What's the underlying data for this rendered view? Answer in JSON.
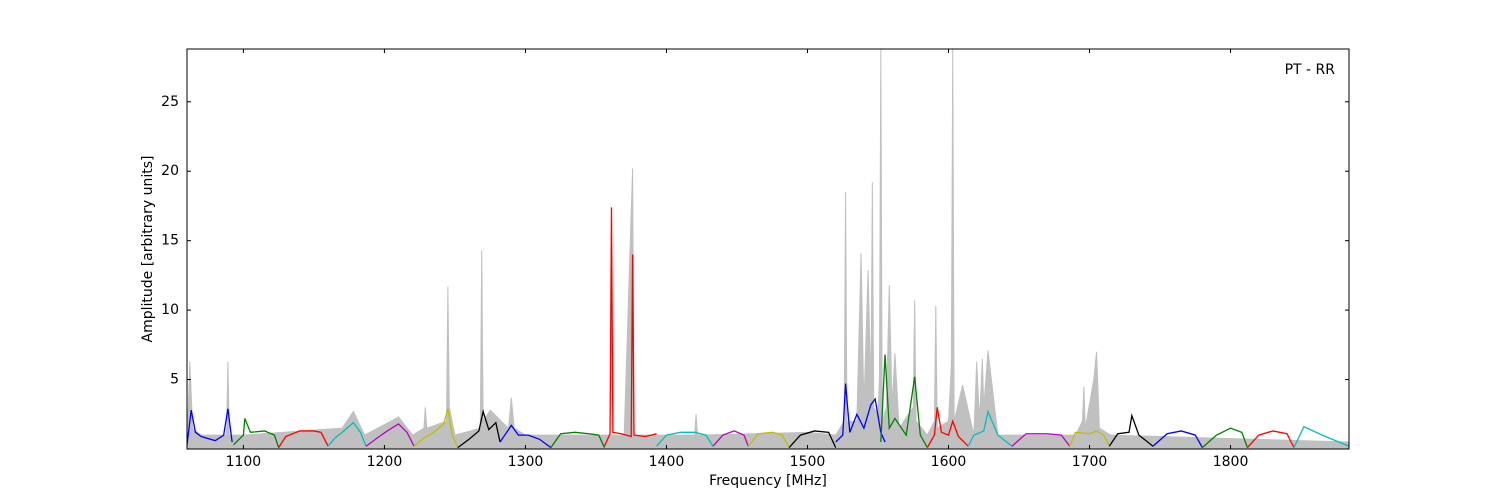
{
  "chart_data": {
    "type": "line",
    "xlabel": "Frequency [MHz]",
    "ylabel": "Amplitude [arbitrary units]",
    "annotation": "PT - RR",
    "xlim": [
      1060,
      1884
    ],
    "ylim": [
      0,
      28.8
    ],
    "xticks": [
      1100,
      1200,
      1300,
      1400,
      1500,
      1600,
      1700,
      1800
    ],
    "yticks": [
      5,
      10,
      15,
      20,
      25
    ],
    "series": [
      {
        "color": "#c0c0c0",
        "fill": true,
        "x": [
          1060,
          1062,
          1064,
          1070,
          1088,
          1089,
          1090,
          1100,
          1170,
          1178,
          1186,
          1210,
          1220,
          1228,
          1229,
          1230,
          1244,
          1245,
          1246,
          1250,
          1268,
          1269,
          1270,
          1275,
          1288,
          1290,
          1292,
          1300,
          1370,
          1376,
          1377,
          1380,
          1420,
          1421,
          1422,
          1500,
          1520,
          1526,
          1527,
          1528,
          1535,
          1538,
          1540,
          1543,
          1545,
          1546,
          1547,
          1550,
          1551,
          1552,
          1553,
          1556,
          1558,
          1560,
          1562,
          1565,
          1575,
          1576,
          1577,
          1585,
          1590,
          1591,
          1592,
          1600,
          1602,
          1603,
          1604,
          1610,
          1618,
          1620,
          1622,
          1624,
          1625,
          1628,
          1635,
          1690,
          1695,
          1696,
          1697,
          1703,
          1705,
          1707,
          1715,
          1884
        ],
        "values": [
          0.3,
          6.3,
          1.5,
          1.0,
          1.0,
          6.3,
          1.0,
          1.0,
          1.5,
          2.7,
          1.0,
          2.3,
          1.0,
          1.5,
          3.0,
          1.5,
          2.0,
          11.7,
          3.0,
          1.0,
          1.5,
          14.3,
          2.0,
          2.8,
          1.5,
          3.7,
          1.5,
          1.0,
          1.0,
          20.2,
          1.0,
          1.0,
          1.0,
          2.5,
          1.0,
          1.2,
          1.0,
          2.0,
          18.5,
          2.0,
          2.0,
          14.1,
          3.0,
          12.9,
          4.0,
          19.2,
          3.0,
          2.5,
          5.0,
          28.8,
          2.0,
          3.0,
          11.8,
          3.0,
          6.9,
          1.5,
          3.0,
          10.7,
          2.0,
          1.0,
          2.0,
          10.3,
          1.5,
          2.0,
          6.0,
          28.8,
          2.0,
          4.6,
          1.0,
          6.3,
          2.0,
          6.5,
          3.0,
          7.1,
          1.0,
          1.0,
          2.0,
          4.5,
          1.5,
          5.0,
          7.0,
          1.5,
          1.0,
          0.5
        ]
      },
      {
        "color": "#0000ff",
        "x": [
          1060,
          1063,
          1066,
          1070,
          1080,
          1086,
          1089,
          1092
        ],
        "values": [
          0.3,
          2.8,
          1.2,
          0.9,
          0.6,
          1.0,
          2.9,
          0.5
        ]
      },
      {
        "color": "#008000",
        "x": [
          1093,
          1100,
          1101,
          1105,
          1115,
          1122,
          1125
        ],
        "values": [
          0.3,
          1.0,
          2.2,
          1.2,
          1.3,
          1.0,
          0.1
        ]
      },
      {
        "color": "#ff0000",
        "x": [
          1125,
          1130,
          1140,
          1150,
          1155,
          1160
        ],
        "values": [
          0.1,
          0.9,
          1.3,
          1.3,
          1.2,
          0.2
        ]
      },
      {
        "color": "#00bfbf",
        "x": [
          1160,
          1165,
          1170,
          1178,
          1183,
          1187
        ],
        "values": [
          0.2,
          0.8,
          1.2,
          1.9,
          1.2,
          0.2
        ]
      },
      {
        "color": "#bf00bf",
        "x": [
          1187,
          1195,
          1202,
          1210,
          1216,
          1221
        ],
        "values": [
          0.2,
          0.8,
          1.3,
          1.8,
          1.2,
          0.2
        ]
      },
      {
        "color": "#bfbf00",
        "x": [
          1221,
          1228,
          1235,
          1242,
          1245,
          1248,
          1252
        ],
        "values": [
          0.2,
          0.8,
          1.2,
          1.8,
          2.9,
          1.0,
          0.1
        ]
      },
      {
        "color": "#000000",
        "x": [
          1252,
          1260,
          1267,
          1270,
          1274,
          1279,
          1282
        ],
        "values": [
          0.1,
          0.7,
          1.3,
          2.7,
          1.4,
          1.9,
          0.5
        ]
      },
      {
        "color": "#0000ff",
        "x": [
          1282,
          1290,
          1295,
          1302,
          1310,
          1318
        ],
        "values": [
          0.5,
          1.7,
          1.0,
          1.0,
          0.7,
          0.1
        ]
      },
      {
        "color": "#008000",
        "x": [
          1318,
          1325,
          1335,
          1345,
          1352,
          1356
        ],
        "values": [
          0.1,
          1.1,
          1.2,
          1.1,
          1.0,
          0.1
        ]
      },
      {
        "color": "#ff0000",
        "x": [
          1356,
          1360,
          1361,
          1362,
          1368,
          1375,
          1376,
          1377,
          1385,
          1393
        ],
        "values": [
          0.2,
          1.1,
          17.4,
          1.2,
          1.1,
          0.9,
          14.0,
          1.0,
          0.9,
          1.1
        ]
      },
      {
        "color": "#00bfbf",
        "x": [
          1393,
          1400,
          1410,
          1420,
          1428,
          1433
        ],
        "values": [
          0.2,
          1.0,
          1.2,
          1.2,
          1.0,
          0.2
        ]
      },
      {
        "color": "#bf00bf",
        "x": [
          1433,
          1440,
          1448,
          1455,
          1458
        ],
        "values": [
          0.2,
          1.0,
          1.3,
          1.0,
          0.2
        ]
      },
      {
        "color": "#bfbf00",
        "x": [
          1458,
          1465,
          1475,
          1482,
          1487
        ],
        "values": [
          0.2,
          1.1,
          1.2,
          1.0,
          0.1
        ]
      },
      {
        "color": "#000000",
        "x": [
          1487,
          1495,
          1505,
          1515,
          1520
        ],
        "values": [
          0.1,
          1.0,
          1.3,
          1.2,
          0.1
        ]
      },
      {
        "color": "#0000ff",
        "x": [
          1520,
          1525,
          1527,
          1530,
          1535,
          1540,
          1545,
          1548,
          1552,
          1555
        ],
        "values": [
          0.5,
          1.0,
          4.7,
          1.2,
          2.5,
          1.5,
          3.2,
          3.6,
          1.2,
          0.5
        ]
      },
      {
        "color": "#008000",
        "x": [
          1552,
          1555,
          1558,
          1562,
          1570,
          1576,
          1580,
          1585
        ],
        "values": [
          0.5,
          6.8,
          1.5,
          2.2,
          1.0,
          5.2,
          1.0,
          0.1
        ]
      },
      {
        "color": "#ff0000",
        "x": [
          1585,
          1590,
          1592,
          1595,
          1600,
          1603,
          1607,
          1614
        ],
        "values": [
          0.1,
          1.0,
          3.0,
          1.2,
          1.0,
          2.0,
          0.9,
          0.2
        ]
      },
      {
        "color": "#00bfbf",
        "x": [
          1614,
          1618,
          1625,
          1628,
          1635,
          1645
        ],
        "values": [
          0.2,
          1.0,
          1.3,
          2.7,
          1.0,
          0.2
        ]
      },
      {
        "color": "#bf00bf",
        "x": [
          1645,
          1655,
          1670,
          1680,
          1686
        ],
        "values": [
          0.2,
          1.1,
          1.1,
          1.0,
          0.2
        ]
      },
      {
        "color": "#bfbf00",
        "x": [
          1686,
          1690,
          1700,
          1705,
          1710,
          1714
        ],
        "values": [
          0.2,
          1.2,
          1.1,
          1.3,
          1.0,
          0.2
        ]
      },
      {
        "color": "#000000",
        "x": [
          1714,
          1720,
          1728,
          1730,
          1735,
          1745
        ],
        "values": [
          0.2,
          1.1,
          1.2,
          2.4,
          1.0,
          0.2
        ]
      },
      {
        "color": "#0000ff",
        "x": [
          1745,
          1755,
          1765,
          1775,
          1780
        ],
        "values": [
          0.2,
          1.1,
          1.3,
          1.0,
          0.1
        ]
      },
      {
        "color": "#008000",
        "x": [
          1780,
          1790,
          1800,
          1808,
          1812
        ],
        "values": [
          0.1,
          1.0,
          1.5,
          1.2,
          0.1
        ]
      },
      {
        "color": "#ff0000",
        "x": [
          1812,
          1820,
          1830,
          1840,
          1845
        ],
        "values": [
          0.1,
          1.0,
          1.3,
          1.1,
          0.1
        ]
      },
      {
        "color": "#00bfbf",
        "x": [
          1845,
          1852,
          1865,
          1884
        ],
        "values": [
          0.1,
          1.6,
          1.0,
          0.2
        ]
      }
    ]
  }
}
